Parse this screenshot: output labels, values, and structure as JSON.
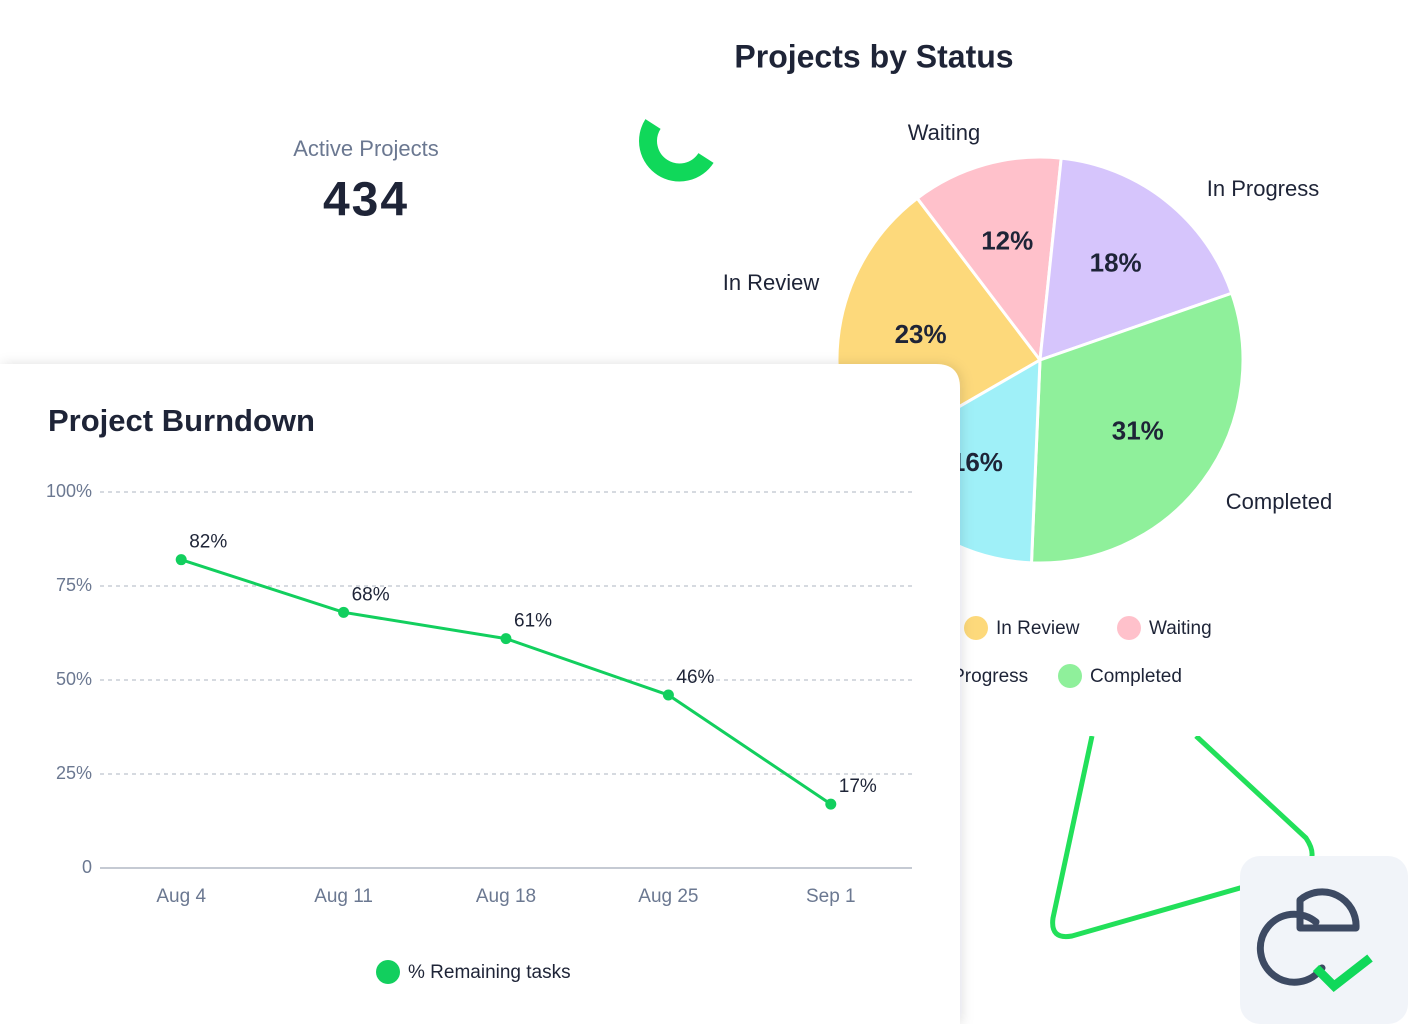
{
  "kpi": {
    "label": "Active Projects",
    "value": 434
  },
  "chart_data": [
    {
      "type": "pie",
      "title": "Projects by Status",
      "categories": [
        "In Review",
        "Waiting",
        "In Progress",
        "Completed",
        null
      ],
      "values": [
        23,
        12,
        18,
        31,
        16
      ],
      "value_labels": [
        "23%",
        "12%",
        "18%",
        "31%",
        "16%"
      ],
      "colors": [
        "#fdd97b",
        "#ffc1cb",
        "#d6c5fc",
        "#8ff09b",
        "#9ff0f8"
      ],
      "legend": true
    },
    {
      "type": "line",
      "title": "Project Burndown",
      "categories": [
        "Aug 4",
        "Aug 11",
        "Aug 18",
        "Aug 25",
        "Sep 1"
      ],
      "series": [
        {
          "name": "% Remaining tasks",
          "color": "#12cf5e",
          "values": [
            82,
            68,
            61,
            46,
            17
          ],
          "value_labels": [
            "82%",
            "68%",
            "61%",
            "46%",
            "17%"
          ]
        }
      ],
      "ylim": [
        0,
        100
      ],
      "yticks": [
        0,
        {
          "value": 25,
          "label": "25%"
        },
        {
          "value": 50,
          "label": "50%"
        },
        {
          "value": 75,
          "label": "75%"
        },
        {
          "value": 100,
          "label": "100%"
        }
      ],
      "grid": true,
      "legend": "bottom"
    }
  ]
}
